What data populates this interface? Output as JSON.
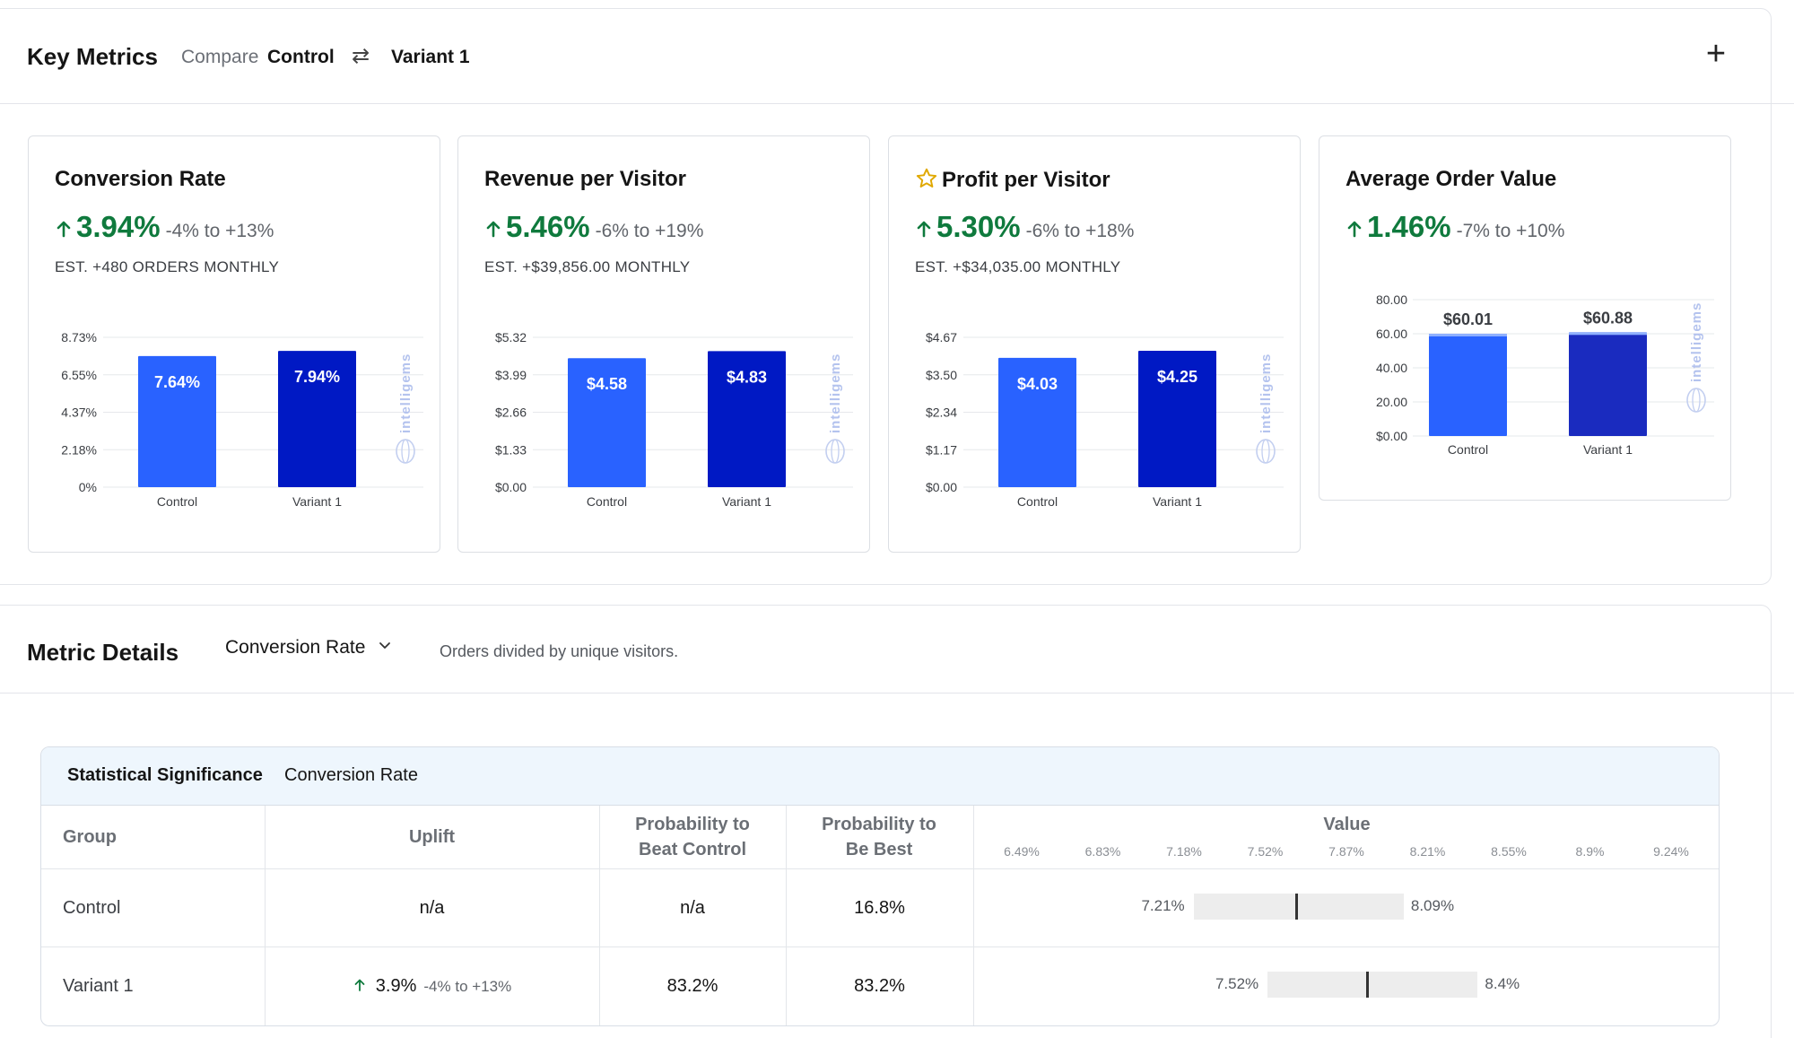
{
  "key_metrics": {
    "title": "Key Metrics",
    "compare_label": "Compare",
    "control_label": "Control",
    "variant_label": "Variant 1",
    "add_icon": "plus-icon",
    "swap_icon": "swap-icon"
  },
  "cards": [
    {
      "title": "Conversion Rate",
      "starred": false,
      "lift": "3.94%",
      "range": "-4% to +13%",
      "estimate": "EST. +480 ORDERS MONTHLY",
      "chart_data": {
        "type": "bar",
        "categories": [
          "Control",
          "Variant 1"
        ],
        "values": [
          7.64,
          7.94
        ],
        "value_labels": [
          "7.64%",
          "7.94%"
        ],
        "ytick_labels": [
          "8.73%",
          "6.55%",
          "4.37%",
          "2.18%",
          "0%"
        ],
        "ylim": [
          0,
          8.73
        ],
        "label_inside": true,
        "watermark": "intelligems"
      }
    },
    {
      "title": "Revenue per Visitor",
      "starred": false,
      "lift": "5.46%",
      "range": "-6% to +19%",
      "estimate": "EST. +$39,856.00 MONTHLY",
      "chart_data": {
        "type": "bar",
        "categories": [
          "Control",
          "Variant 1"
        ],
        "values": [
          4.58,
          4.83
        ],
        "value_labels": [
          "$4.58",
          "$4.83"
        ],
        "ytick_labels": [
          "$5.32",
          "$3.99",
          "$2.66",
          "$1.33",
          "$0.00"
        ],
        "ylim": [
          0,
          5.32
        ],
        "label_inside": true,
        "watermark": "intelligems"
      }
    },
    {
      "title": "Profit per Visitor",
      "starred": true,
      "lift": "5.30%",
      "range": "-6% to +18%",
      "estimate": "EST. +$34,035.00 MONTHLY",
      "chart_data": {
        "type": "bar",
        "categories": [
          "Control",
          "Variant 1"
        ],
        "values": [
          4.03,
          4.25
        ],
        "value_labels": [
          "$4.03",
          "$4.25"
        ],
        "ytick_labels": [
          "$4.67",
          "$3.50",
          "$2.34",
          "$1.17",
          "$0.00"
        ],
        "ylim": [
          0,
          4.67
        ],
        "label_inside": true,
        "watermark": "intelligems"
      }
    },
    {
      "title": "Average Order Value",
      "starred": false,
      "lift": "1.46%",
      "range": "-7% to +10%",
      "estimate": "",
      "chart_data": {
        "type": "bar",
        "categories": [
          "Control",
          "Variant 1"
        ],
        "values": [
          60.01,
          60.88
        ],
        "value_labels": [
          "$60.01",
          "$60.88"
        ],
        "ytick_labels": [
          "80.00",
          "60.00",
          "40.00",
          "20.00",
          "$0.00"
        ],
        "ylim": [
          0,
          80
        ],
        "label_inside": false,
        "watermark": "intelligems"
      }
    }
  ],
  "colors": {
    "control": "#2962ff",
    "variant": "#0019c4",
    "variant_aoa": "#1a2bbf",
    "positive": "#0f7a3d",
    "star": "#e0a800"
  },
  "metric_details": {
    "title": "Metric Details",
    "selected_metric": "Conversion Rate",
    "description": "Orders divided by unique visitors."
  },
  "stat_sig": {
    "title": "Statistical Significance",
    "metric": "Conversion Rate",
    "headers": {
      "group": "Group",
      "uplift": "Uplift",
      "prob_beat_control": "Probability to Beat Control",
      "prob_best": "Probability to Be Best",
      "value": "Value"
    },
    "value_axis_ticks": [
      "6.49%",
      "6.83%",
      "7.18%",
      "7.52%",
      "7.87%",
      "8.21%",
      "8.55%",
      "8.9%",
      "9.24%"
    ],
    "rows": [
      {
        "group": "Control",
        "uplift": "n/a",
        "uplift_range": "",
        "uplift_up": false,
        "prob_beat_control": "n/a",
        "prob_best": "16.8%",
        "ci_low": "7.21%",
        "ci_high": "8.09%",
        "ci_low_value": 7.21,
        "ci_high_value": 8.09,
        "point": 7.64
      },
      {
        "group": "Variant 1",
        "uplift": "3.9%",
        "uplift_range": "-4% to +13%",
        "uplift_up": true,
        "prob_beat_control": "83.2%",
        "prob_best": "83.2%",
        "ci_low": "7.52%",
        "ci_high": "8.4%",
        "ci_low_value": 7.52,
        "ci_high_value": 8.4,
        "point": 7.94
      }
    ]
  }
}
